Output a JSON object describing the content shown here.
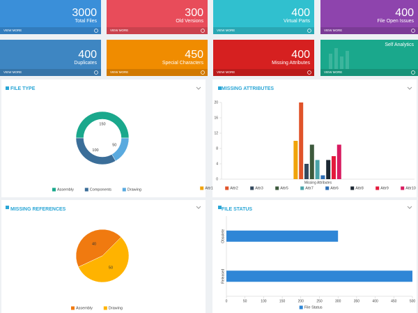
{
  "tiles": [
    {
      "value": 3000,
      "label": "Total Files",
      "action": "VIEW MORE",
      "color": "#3a8fd9"
    },
    {
      "value": 300,
      "label": "Old Versions",
      "action": "VIEW MORE",
      "color": "#e84c5a"
    },
    {
      "value": 400,
      "label": "Virtual Parts",
      "action": "VIEW MORE",
      "color": "#30c0cf"
    },
    {
      "value": 400,
      "label": "File Open Issues",
      "action": "VIEW MORE",
      "color": "#8e44ad"
    },
    {
      "value": 400,
      "label": "Duplicates",
      "action": "VIEW MORE",
      "color": "#3e86c2"
    },
    {
      "value": 450,
      "label": "Special Characters",
      "action": "VIEW MORE",
      "color": "#f08c00"
    },
    {
      "value": 400,
      "label": "Missing Attributes",
      "action": "VIEW MORE",
      "color": "#d62020"
    },
    {
      "label": "Self Analytics",
      "action": "VIEW MORE",
      "color": "#1aa88c"
    }
  ],
  "chart_data": [
    {
      "type": "donut",
      "title": "FILE TYPE",
      "categories": [
        "Assembly",
        "Components",
        "Drawing"
      ],
      "values": [
        150,
        100,
        50
      ],
      "colors": [
        "#1aa88c",
        "#3b6e99",
        "#5aaadf"
      ]
    },
    {
      "type": "bar",
      "title": "MISSING ATTRIBUTES",
      "categories": [
        "Missing Attributes"
      ],
      "ylim": [
        0,
        20
      ],
      "yticks": [
        0,
        4,
        8,
        12,
        16,
        20
      ],
      "series": [
        {
          "name": "Attr1",
          "color": "#f0a30a",
          "values": [
            10
          ]
        },
        {
          "name": "Attr2",
          "color": "#e0532a",
          "values": [
            20
          ]
        },
        {
          "name": "Attr3",
          "color": "#34495e",
          "values": [
            4
          ]
        },
        {
          "name": "Attr5",
          "color": "#3d5a3d",
          "values": [
            9
          ]
        },
        {
          "name": "Attr7",
          "color": "#4aa3a8",
          "values": [
            5
          ]
        },
        {
          "name": "Attr6",
          "color": "#2c6db5",
          "values": [
            1
          ]
        },
        {
          "name": "Attr8",
          "color": "#1c2833",
          "values": [
            5
          ]
        },
        {
          "name": "Attr9",
          "color": "#e31a3c",
          "values": [
            6
          ]
        },
        {
          "name": "Attr10",
          "color": "#d81b60",
          "values": [
            9
          ]
        }
      ]
    },
    {
      "type": "pie",
      "title": "MISSING REFERENCES",
      "categories": [
        "Assembly",
        "Drawing"
      ],
      "values": [
        40,
        50
      ],
      "colors": [
        "#f07a10",
        "#ffb300"
      ]
    },
    {
      "type": "barh",
      "title": "FILE STATUS",
      "categories": [
        "Obsolete",
        "Released"
      ],
      "xlim": [
        0,
        500
      ],
      "xticks": [
        0,
        50,
        100,
        150,
        200,
        250,
        300,
        350,
        400,
        450,
        500
      ],
      "series": [
        {
          "name": "File Status",
          "color": "#2f86d6",
          "values": [
            300,
            500
          ]
        }
      ]
    }
  ]
}
